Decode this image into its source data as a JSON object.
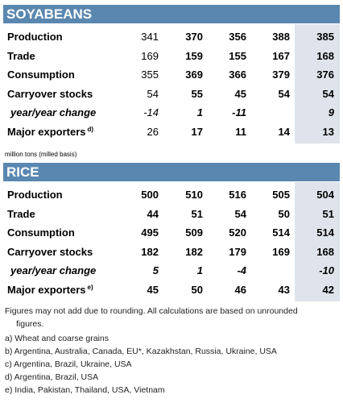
{
  "sections": [
    {
      "title": "SOYABEANS",
      "rows": [
        {
          "label": "Production",
          "values": [
            341,
            370,
            356,
            388,
            385
          ]
        },
        {
          "label": "Trade",
          "values": [
            169,
            159,
            155,
            167,
            168
          ]
        },
        {
          "label": "Consumption",
          "values": [
            355,
            369,
            366,
            379,
            376
          ]
        },
        {
          "label": "Carryover stocks",
          "values": [
            54,
            55,
            45,
            54,
            54
          ]
        },
        {
          "label": "year/year change",
          "values": [
            -14,
            1,
            -11,
            null,
            9
          ]
        },
        {
          "label": "Major exporters",
          "sup": "d)",
          "values": [
            26,
            17,
            11,
            14,
            13
          ]
        }
      ],
      "note": "million tons (milled basis)"
    },
    {
      "title": "RICE",
      "rows": [
        {
          "label": "Production",
          "values": [
            500,
            510,
            516,
            505,
            504
          ]
        },
        {
          "label": "Trade",
          "values": [
            44,
            51,
            54,
            50,
            51
          ]
        },
        {
          "label": "Consumption",
          "values": [
            495,
            509,
            520,
            514,
            514
          ]
        },
        {
          "label": "Carryover stocks",
          "values": [
            182,
            182,
            179,
            169,
            168
          ]
        },
        {
          "label": "year/year change",
          "values": [
            5,
            1,
            -4,
            null,
            -10
          ]
        },
        {
          "label": "Major exporters",
          "sup": "e)",
          "values": [
            45,
            50,
            46,
            43,
            42
          ]
        }
      ]
    }
  ],
  "footnotes": [
    "Figures may not add due to rounding. All calculations are based on unrounded figures.",
    "a) Wheat and coarse grains",
    "b) Argentina, Australia, Canada, EU*, Kazakhstan, Russia, Ukraine, USA",
    "c) Argentina, Brazil, Ukraine, USA",
    "d) Argentina, Brazil, USA",
    "e) India, Pakistan, Thailand, USA, Vietnam"
  ]
}
